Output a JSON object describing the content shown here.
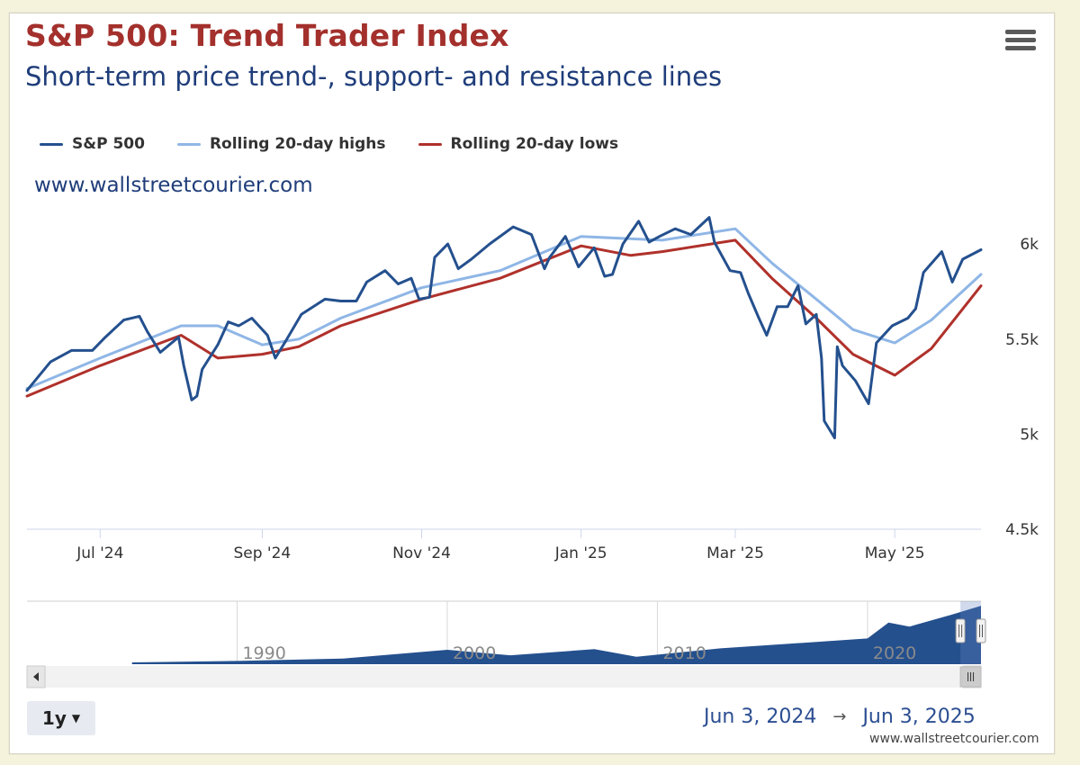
{
  "header": {
    "title": "S&P 500: Trend Trader Index",
    "subtitle": "Short-term price trend-, support- and resistance lines",
    "watermark_top": "www.wallstreetcourier.com",
    "watermark_bottom": "www.wallstreetcourier.com"
  },
  "controls": {
    "range_selector": "1y",
    "date_from": "Jun 3, 2024",
    "date_arrow": "→",
    "date_to": "Jun 3, 2025"
  },
  "colors": {
    "sp500": "#24508e",
    "highs": "#8fb6e6",
    "lows": "#b0312b",
    "navigator_fill": "#24508e",
    "title": "#a3302c"
  },
  "chart_data": {
    "type": "line",
    "title": "S&P 500: Trend Trader Index",
    "subtitle": "Short-term price trend-, support- and resistance lines",
    "ylim": [
      4500,
      6100
    ],
    "yticks": [
      {
        "value": 4500,
        "label": "4.5k"
      },
      {
        "value": 5000,
        "label": "5k"
      },
      {
        "value": 5500,
        "label": "5.5k"
      },
      {
        "value": 6000,
        "label": "6k"
      }
    ],
    "xlim": [
      "2024-06-03",
      "2025-06-03"
    ],
    "xticks": [
      {
        "date": "2024-07-01",
        "label": "Jul '24"
      },
      {
        "date": "2024-09-01",
        "label": "Sep '24"
      },
      {
        "date": "2024-11-01",
        "label": "Nov '24"
      },
      {
        "date": "2025-01-01",
        "label": "Jan '25"
      },
      {
        "date": "2025-03-01",
        "label": "Mar '25"
      },
      {
        "date": "2025-05-01",
        "label": "May '25"
      }
    ],
    "legend_position": "top-left",
    "grid": false,
    "series": [
      {
        "name": "S&P 500",
        "color": "#24508e",
        "points": [
          [
            "2024-06-03",
            5230
          ],
          [
            "2024-06-12",
            5380
          ],
          [
            "2024-06-20",
            5440
          ],
          [
            "2024-06-28",
            5440
          ],
          [
            "2024-07-03",
            5510
          ],
          [
            "2024-07-10",
            5600
          ],
          [
            "2024-07-16",
            5620
          ],
          [
            "2024-07-19",
            5540
          ],
          [
            "2024-07-24",
            5430
          ],
          [
            "2024-07-31",
            5510
          ],
          [
            "2024-08-02",
            5360
          ],
          [
            "2024-08-05",
            5180
          ],
          [
            "2024-08-07",
            5200
          ],
          [
            "2024-08-09",
            5340
          ],
          [
            "2024-08-15",
            5470
          ],
          [
            "2024-08-19",
            5590
          ],
          [
            "2024-08-23",
            5570
          ],
          [
            "2024-08-28",
            5610
          ],
          [
            "2024-09-03",
            5520
          ],
          [
            "2024-09-06",
            5400
          ],
          [
            "2024-09-10",
            5490
          ],
          [
            "2024-09-16",
            5630
          ],
          [
            "2024-09-25",
            5710
          ],
          [
            "2024-10-01",
            5700
          ],
          [
            "2024-10-07",
            5700
          ],
          [
            "2024-10-11",
            5800
          ],
          [
            "2024-10-18",
            5860
          ],
          [
            "2024-10-23",
            5790
          ],
          [
            "2024-10-28",
            5820
          ],
          [
            "2024-10-31",
            5710
          ],
          [
            "2024-11-04",
            5720
          ],
          [
            "2024-11-06",
            5930
          ],
          [
            "2024-11-11",
            6000
          ],
          [
            "2024-11-15",
            5870
          ],
          [
            "2024-11-20",
            5920
          ],
          [
            "2024-11-27",
            6000
          ],
          [
            "2024-12-06",
            6090
          ],
          [
            "2024-12-13",
            6050
          ],
          [
            "2024-12-18",
            5870
          ],
          [
            "2024-12-20",
            5930
          ],
          [
            "2024-12-26",
            6040
          ],
          [
            "2024-12-31",
            5880
          ],
          [
            "2025-01-06",
            5980
          ],
          [
            "2025-01-10",
            5830
          ],
          [
            "2025-01-13",
            5840
          ],
          [
            "2025-01-17",
            6000
          ],
          [
            "2025-01-23",
            6120
          ],
          [
            "2025-01-27",
            6010
          ],
          [
            "2025-01-31",
            6040
          ],
          [
            "2025-02-06",
            6080
          ],
          [
            "2025-02-12",
            6050
          ],
          [
            "2025-02-19",
            6140
          ],
          [
            "2025-02-21",
            6010
          ],
          [
            "2025-02-27",
            5860
          ],
          [
            "2025-03-03",
            5850
          ],
          [
            "2025-03-06",
            5740
          ],
          [
            "2025-03-10",
            5610
          ],
          [
            "2025-03-13",
            5520
          ],
          [
            "2025-03-17",
            5670
          ],
          [
            "2025-03-21",
            5670
          ],
          [
            "2025-03-25",
            5780
          ],
          [
            "2025-03-28",
            5580
          ],
          [
            "2025-04-01",
            5630
          ],
          [
            "2025-04-03",
            5400
          ],
          [
            "2025-04-04",
            5070
          ],
          [
            "2025-04-08",
            4980
          ],
          [
            "2025-04-09",
            5460
          ],
          [
            "2025-04-11",
            5360
          ],
          [
            "2025-04-16",
            5280
          ],
          [
            "2025-04-21",
            5160
          ],
          [
            "2025-04-24",
            5480
          ],
          [
            "2025-04-30",
            5570
          ],
          [
            "2025-05-06",
            5610
          ],
          [
            "2025-05-09",
            5660
          ],
          [
            "2025-05-12",
            5850
          ],
          [
            "2025-05-19",
            5960
          ],
          [
            "2025-05-23",
            5800
          ],
          [
            "2025-05-27",
            5920
          ],
          [
            "2025-06-03",
            5970
          ]
        ]
      },
      {
        "name": "Rolling 20-day highs",
        "color": "#8fb6e6",
        "points": [
          [
            "2024-06-03",
            5240
          ],
          [
            "2024-07-01",
            5400
          ],
          [
            "2024-08-01",
            5570
          ],
          [
            "2024-08-15",
            5570
          ],
          [
            "2024-09-01",
            5470
          ],
          [
            "2024-09-15",
            5500
          ],
          [
            "2024-10-01",
            5610
          ],
          [
            "2024-11-01",
            5770
          ],
          [
            "2024-12-01",
            5860
          ],
          [
            "2025-01-01",
            6040
          ],
          [
            "2025-02-01",
            6020
          ],
          [
            "2025-03-01",
            6080
          ],
          [
            "2025-03-15",
            5900
          ],
          [
            "2025-04-01",
            5710
          ],
          [
            "2025-04-15",
            5550
          ],
          [
            "2025-05-01",
            5480
          ],
          [
            "2025-05-15",
            5600
          ],
          [
            "2025-06-03",
            5840
          ]
        ]
      },
      {
        "name": "Rolling 20-day lows",
        "color": "#b0312b",
        "points": [
          [
            "2024-06-03",
            5200
          ],
          [
            "2024-07-01",
            5360
          ],
          [
            "2024-08-01",
            5520
          ],
          [
            "2024-08-15",
            5400
          ],
          [
            "2024-09-01",
            5420
          ],
          [
            "2024-09-15",
            5460
          ],
          [
            "2024-10-01",
            5570
          ],
          [
            "2024-11-01",
            5710
          ],
          [
            "2024-12-01",
            5820
          ],
          [
            "2025-01-01",
            5990
          ],
          [
            "2025-01-20",
            5940
          ],
          [
            "2025-02-01",
            5960
          ],
          [
            "2025-03-01",
            6020
          ],
          [
            "2025-03-15",
            5820
          ],
          [
            "2025-04-01",
            5610
          ],
          [
            "2025-04-15",
            5420
          ],
          [
            "2025-05-01",
            5310
          ],
          [
            "2025-05-15",
            5450
          ],
          [
            "2025-06-03",
            5780
          ]
        ]
      }
    ],
    "navigator": {
      "labels": [
        "1990",
        "2000",
        "2010",
        "2020"
      ],
      "years": [
        1985,
        1990,
        1995,
        2000,
        2003,
        2007,
        2009,
        2013,
        2020,
        2021,
        2022,
        2024,
        2025.4
      ],
      "values": [
        180,
        330,
        560,
        1450,
        900,
        1520,
        750,
        1600,
        2600,
        4200,
        3800,
        5000,
        5900
      ]
    }
  }
}
